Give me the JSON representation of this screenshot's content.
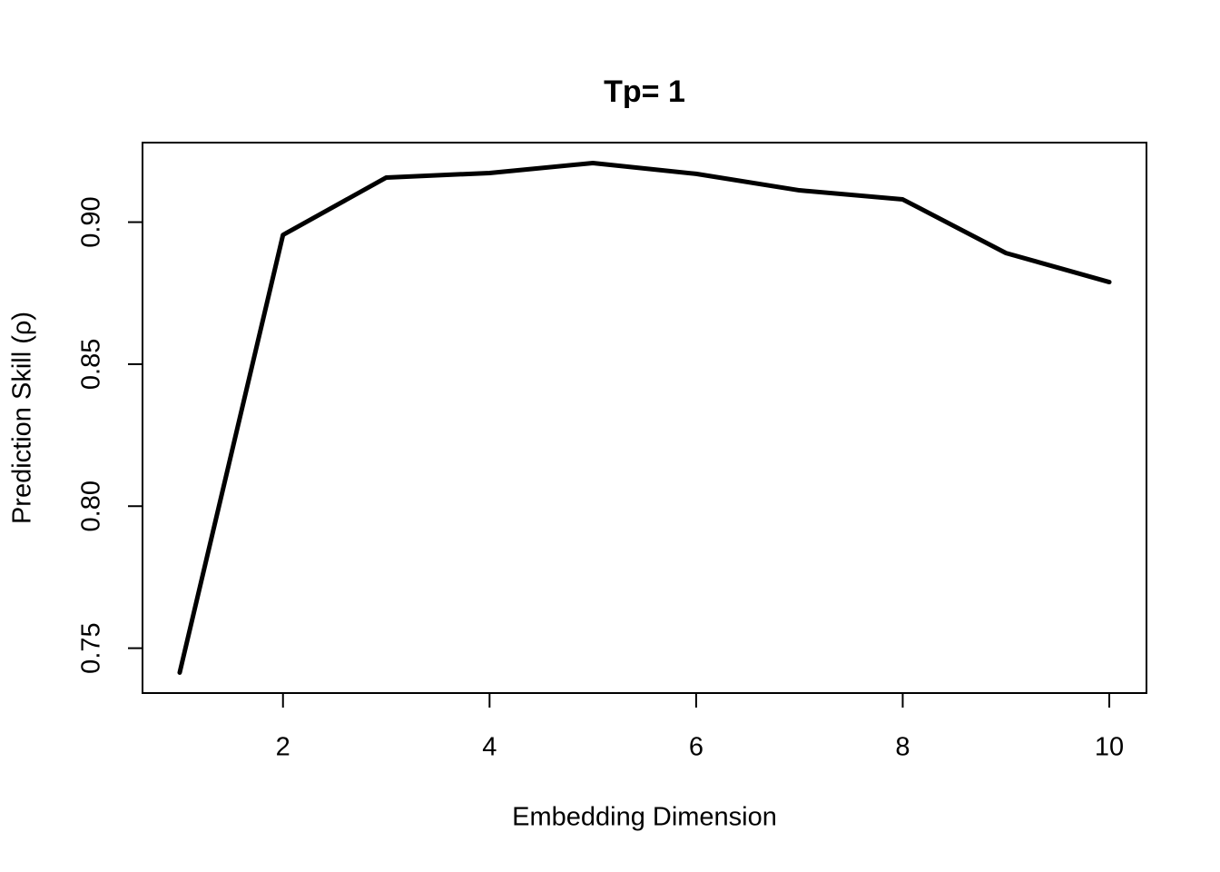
{
  "chart_data": {
    "type": "line",
    "title": "Tp= 1",
    "x_label": "Embedding Dimension",
    "y_label": "Prediction Skill (ρ)",
    "x": [
      1,
      2,
      3,
      4,
      5,
      6,
      7,
      8,
      9,
      10
    ],
    "series": [
      {
        "name": "Prediction Skill",
        "color": "#000000",
        "values": [
          0.7414,
          0.8955,
          0.9157,
          0.9173,
          0.9208,
          0.917,
          0.9112,
          0.908,
          0.8891,
          0.8789
        ]
      }
    ],
    "xlim": [
      0.64,
      10.36
    ],
    "ylim": [
      0.7342,
      0.928
    ],
    "xticks": [
      2,
      4,
      6,
      8,
      10
    ],
    "yticks": [
      0.75,
      {
        "value": 0.8,
        "label": "0.80"
      },
      0.85,
      {
        "value": 0.9,
        "label": "0.90"
      }
    ],
    "grid": false
  }
}
